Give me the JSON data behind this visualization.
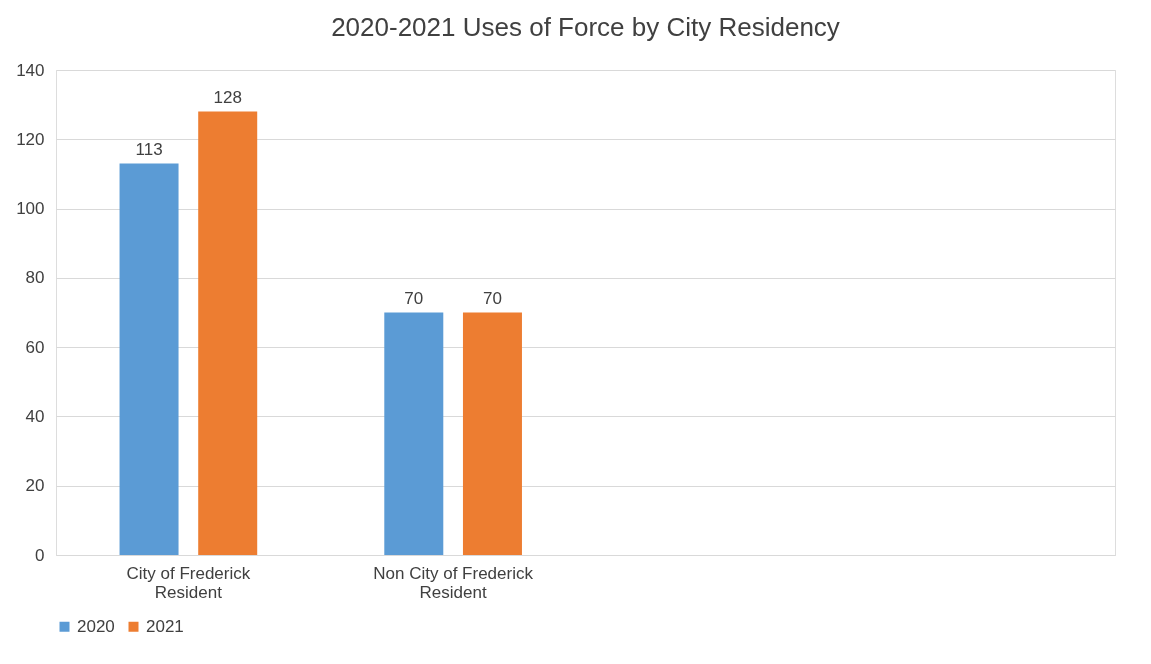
{
  "chart_data": {
    "type": "bar",
    "title": "2020-2021 Uses of Force by City Residency",
    "categories": [
      "City of Frederick Resident",
      "Non City of Frederick Resident",
      null,
      null
    ],
    "series": [
      {
        "name": "2020",
        "color": "#5b9bd5",
        "values": [
          113,
          70,
          null,
          null
        ]
      },
      {
        "name": "2021",
        "color": "#ed7d31",
        "values": [
          128,
          70,
          null,
          null
        ]
      }
    ],
    "ylim": [
      0,
      140
    ],
    "yticks": [
      0,
      20,
      40,
      60,
      80,
      100,
      120,
      140
    ],
    "grid": "y",
    "legend": "bottom",
    "data_labels": true
  }
}
